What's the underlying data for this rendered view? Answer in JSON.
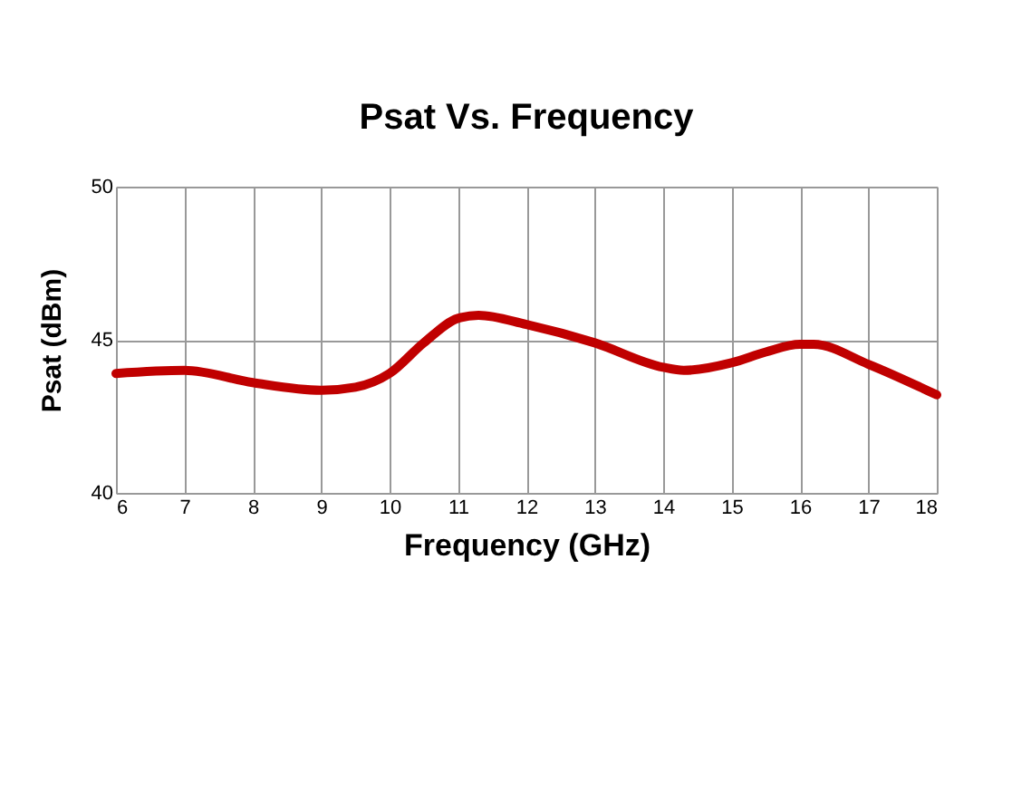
{
  "chart_data": {
    "type": "line",
    "title": "Psat Vs. Frequency",
    "xlabel": "Frequency (GHz)",
    "ylabel": "Psat (dBm)",
    "x": [
      6,
      7,
      8,
      9,
      9.5,
      10,
      10.5,
      11,
      11.3,
      12,
      13,
      14,
      14.3,
      15,
      15.5,
      16,
      16.2,
      17,
      18
    ],
    "series": [
      {
        "color": "#c00000",
        "values": [
          43.9,
          44.0,
          43.6,
          43.35,
          43.45,
          43.9,
          44.9,
          45.7,
          45.8,
          45.5,
          44.9,
          44.1,
          44.0,
          44.25,
          44.6,
          44.85,
          44.85,
          44.2,
          43.2
        ]
      }
    ],
    "xlim": [
      6,
      18
    ],
    "xticks": [
      6,
      7,
      8,
      9,
      10,
      11,
      12,
      13,
      14,
      15,
      16,
      17,
      18
    ],
    "ylim": [
      40,
      50
    ],
    "yticks": [
      40,
      45,
      50
    ],
    "grid": true,
    "marker": "none",
    "line_style": "solid"
  }
}
